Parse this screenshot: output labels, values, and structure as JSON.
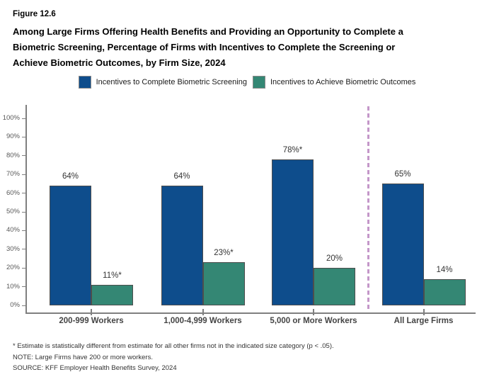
{
  "figure": {
    "label": "Figure 12.6",
    "title_lines": [
      "Among Large Firms Offering Health Benefits and Providing an Opportunity to Complete a",
      "Biometric Screening, Percentage of Firms with Incentives to Complete the Screening or",
      "Achieve Biometric Outcomes, by Firm Size, 2024"
    ]
  },
  "legend": [
    {
      "label": "Incentives to Complete Biometric Screening",
      "color": "#0E4D8C"
    },
    {
      "label": "Incentives to Achieve Biometric Outcomes",
      "color": "#348774"
    }
  ],
  "chart_data": {
    "type": "bar",
    "categories": [
      "200-999 Workers",
      "1,000-4,999 Workers",
      "5,000 or More Workers",
      "All Large Firms"
    ],
    "series": [
      {
        "name": "Incentives to Complete Biometric Screening",
        "color": "#0E4D8C",
        "values": [
          64,
          64,
          78,
          65
        ],
        "labels": [
          "64%",
          "64%",
          "78%*",
          "65%"
        ]
      },
      {
        "name": "Incentives to Achieve Biometric Outcomes",
        "color": "#348774",
        "values": [
          11,
          23,
          20,
          14
        ],
        "labels": [
          "11%*",
          "23%*",
          "20%",
          "14%"
        ]
      }
    ],
    "title": "Among Large Firms Offering Health Benefits and Providing an Opportunity to Complete a Biometric Screening, Percentage of Firms with Incentives to Complete the Screening or Achieve Biometric Outcomes, by Firm Size, 2024",
    "xlabel": "",
    "ylabel": "",
    "ylim": [
      0,
      100
    ],
    "ytick_step": 10,
    "ytick_suffix": "%",
    "grid": false,
    "legend_position": "top",
    "separator_before_category": 3,
    "separator_color": "#C497C9",
    "axis_color": "#7f7f7f",
    "bar_border_color": "#4d4d4d"
  },
  "footnotes": [
    "* Estimate is statistically different from estimate for all other firms not in the indicated size category (p < .05).",
    "NOTE: Large Firms have 200 or more workers.",
    "SOURCE: KFF Employer Health Benefits Survey, 2024"
  ]
}
